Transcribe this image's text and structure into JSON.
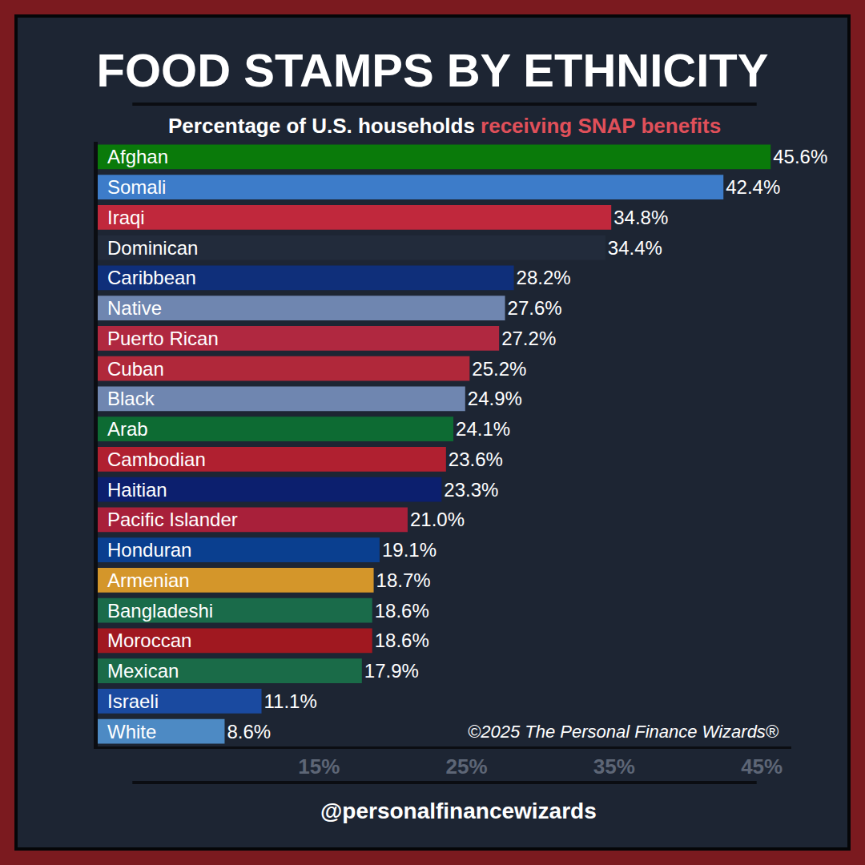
{
  "chart_data": {
    "type": "bar",
    "orientation": "horizontal",
    "title": "FOOD STAMPS BY ETHNICITY",
    "subtitle": [
      "Percentage of U.S. households",
      "receiving SNAP benefits"
    ],
    "categories": [
      "Afghan",
      "Somali",
      "Iraqi",
      "Dominican",
      "Caribbean",
      "Native",
      "Puerto Rican",
      "Cuban",
      "Black",
      "Arab",
      "Cambodian",
      "Haitian",
      "Pacific Islander",
      "Honduran",
      "Armenian",
      "Bangladeshi",
      "Moroccan",
      "Mexican",
      "Israeli",
      "White"
    ],
    "values": [
      45.6,
      42.4,
      34.8,
      34.4,
      28.2,
      27.6,
      27.2,
      25.2,
      24.9,
      24.1,
      23.6,
      23.3,
      21.0,
      19.1,
      18.7,
      18.6,
      18.6,
      17.9,
      11.1,
      8.6
    ],
    "value_labels": [
      "45.6%",
      "42.4%",
      "34.8%",
      "34.4%",
      "28.2%",
      "27.6%",
      "27.2%",
      "25.2%",
      "24.9%",
      "24.1%",
      "23.6%",
      "23.3%",
      "21.0%",
      "19.1%",
      "18.7%",
      "18.6%",
      "18.6%",
      "17.9%",
      "11.1%",
      "8.6%"
    ],
    "colors": [
      "#0a7a0a",
      "#3d7cc9",
      "#c0283c",
      "#222b3b",
      "#0f2f7a",
      "#6f86b0",
      "#b02840",
      "#b0283a",
      "#6f86b0",
      "#0d6b33",
      "#b02030",
      "#0c1f6e",
      "#a8203a",
      "#0a3f8f",
      "#d4962a",
      "#1a6b4a",
      "#a01820",
      "#1a6b48",
      "#1a4aa0",
      "#4d8ac4"
    ],
    "xlim": [
      0,
      47
    ],
    "xticks": [
      {
        "value": 15,
        "label": "15%"
      },
      {
        "value": 25,
        "label": "25%"
      },
      {
        "value": 35,
        "label": "35%"
      },
      {
        "value": 45,
        "label": "45%"
      }
    ],
    "grid": false,
    "data_labels": true,
    "tick_labels": "x",
    "annotations": [
      "©2025 The Personal Finance Wizards®",
      "@personalfinancewizards"
    ]
  }
}
